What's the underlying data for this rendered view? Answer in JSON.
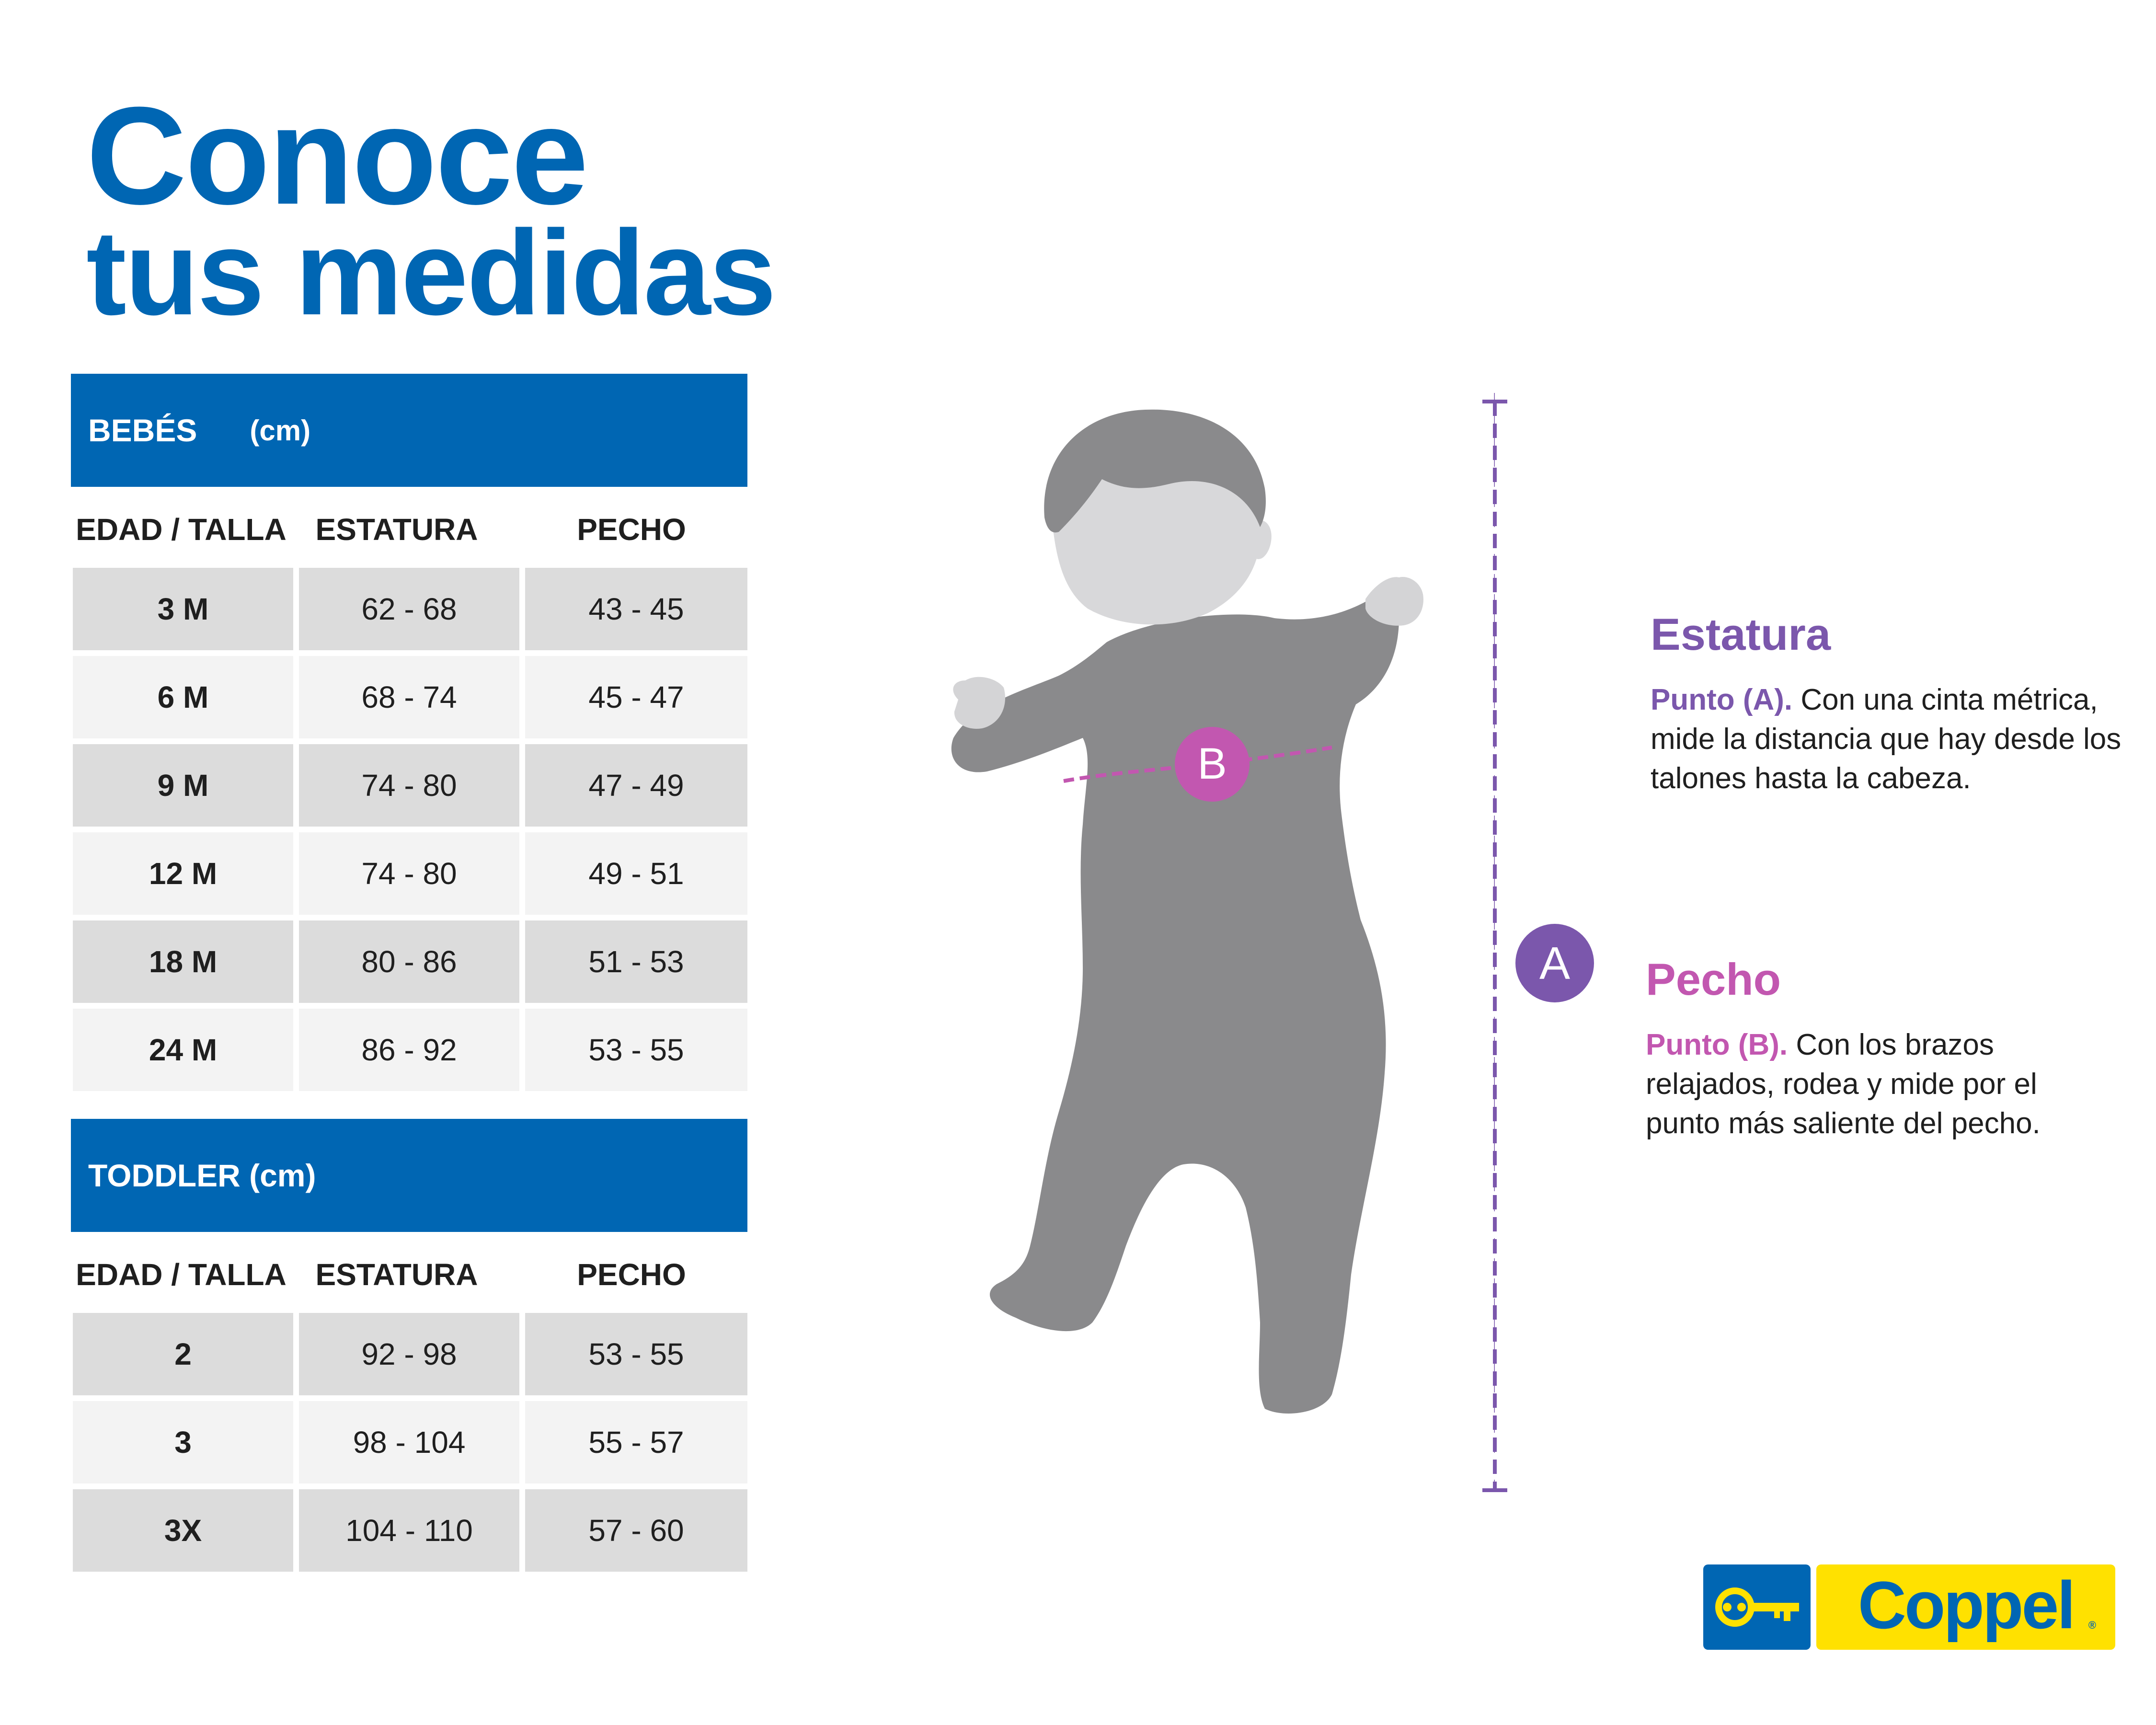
{
  "title": {
    "line1": "Conoce",
    "line2": "tus medidas"
  },
  "bebes": {
    "title": "BEBÉS",
    "unit": "(cm)",
    "columns": [
      "EDAD / TALLA",
      "ESTATURA",
      "PECHO"
    ],
    "rows": [
      [
        "3 M",
        "62 - 68",
        "43 - 45"
      ],
      [
        "6 M",
        "68 - 74",
        "45 - 47"
      ],
      [
        "9 M",
        "74 - 80",
        "47 - 49"
      ],
      [
        "12 M",
        "74 - 80",
        "49 - 51"
      ],
      [
        "18 M",
        "80 - 86",
        "51 - 53"
      ],
      [
        "24 M",
        "86 - 92",
        "53 - 55"
      ]
    ]
  },
  "toddler": {
    "title": "TODDLER (cm)",
    "columns": [
      "EDAD / TALLA",
      "ESTATURA",
      "PECHO"
    ],
    "rows": [
      [
        "2",
        "92 - 98",
        "53 - 55"
      ],
      [
        "3",
        "98 - 104",
        "55 - 57"
      ],
      [
        "3X",
        "104 - 110",
        "57 - 60"
      ]
    ]
  },
  "figure": {
    "marker_a": "A",
    "marker_b": "B"
  },
  "estatura": {
    "title": "Estatura",
    "lead": "Punto (A).",
    "text": "Con una cinta métrica, mide la distancia que hay desde los talones hasta la cabeza."
  },
  "pecho": {
    "title": "Pecho",
    "lead": "Punto (B).",
    "text": "Con los brazos relajados, rodea y mide por el punto más saliente del pecho."
  },
  "brand": {
    "name": "Coppel",
    "mark": "®"
  },
  "colors": {
    "brand_blue": "#0066b3",
    "brand_yellow": "#ffe100",
    "estatura_purple": "#7b57ac",
    "pecho_pink": "#c257b0",
    "figure_gray": "#8a8a8c"
  }
}
